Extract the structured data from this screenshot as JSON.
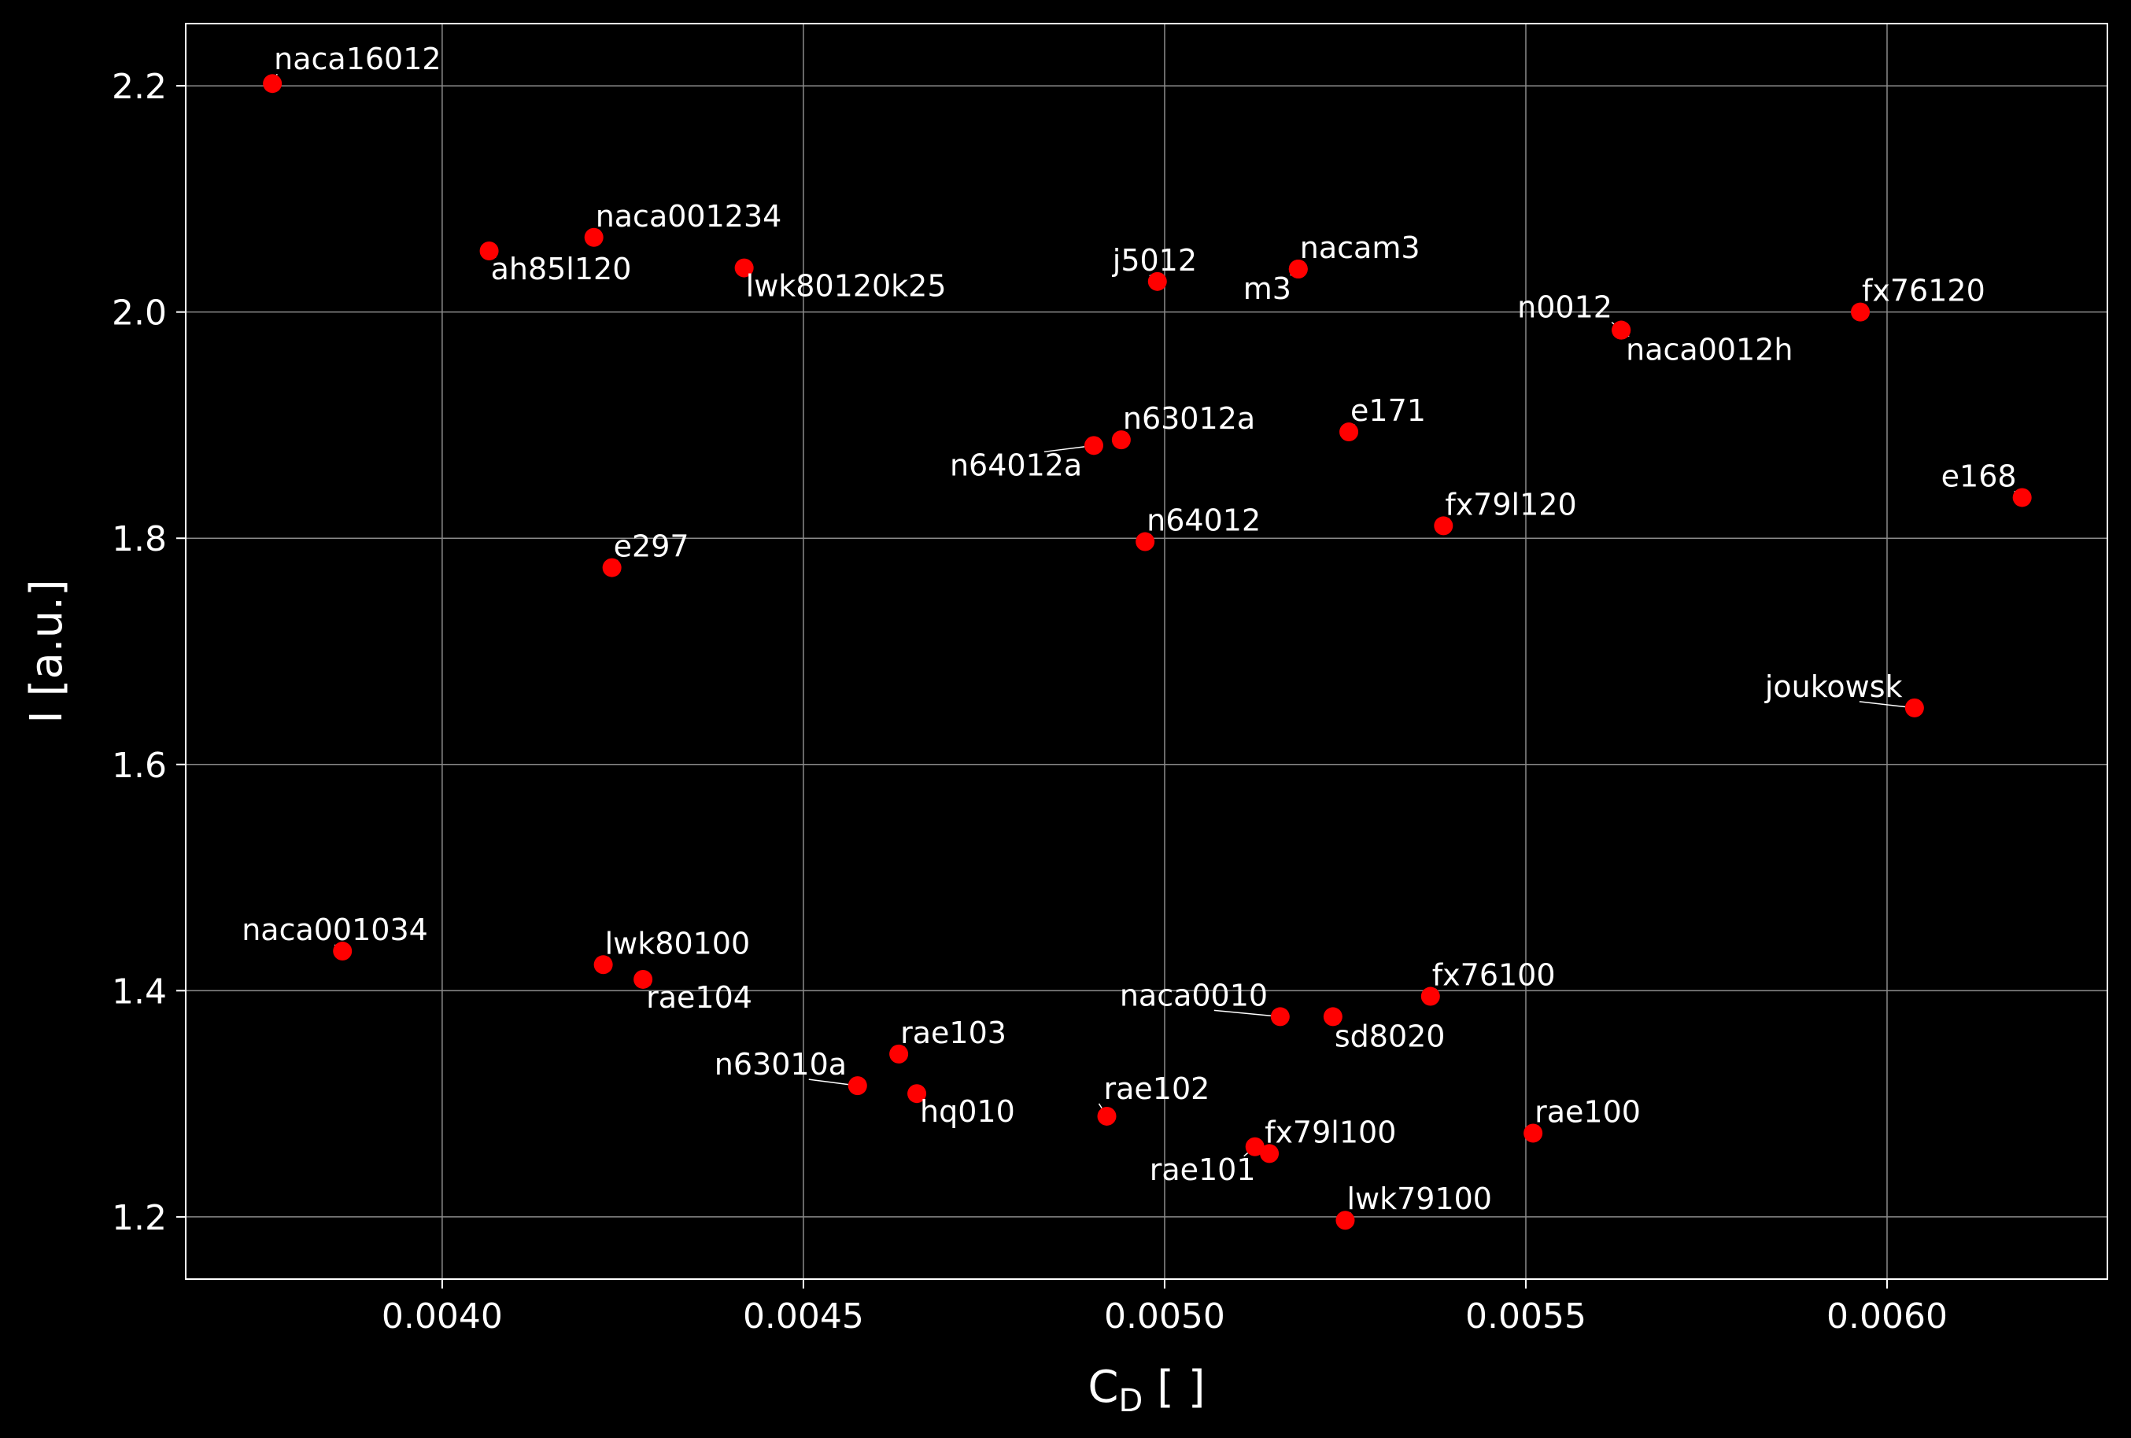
{
  "chart_data": {
    "type": "scatter",
    "title": "",
    "xlabel": "C",
    "xlabel_sub": "D",
    "xlabel_suffix": " [ ]",
    "ylabel": "I [a.u.]",
    "xlim": [
      0.003645,
      0.006305
    ],
    "ylim": [
      1.145,
      2.255
    ],
    "xticks": [
      0.004,
      0.0045,
      0.005,
      0.0055,
      0.006
    ],
    "xtick_labels": [
      "0.0040",
      "0.0045",
      "0.0050",
      "0.0055",
      "0.0060"
    ],
    "yticks": [
      1.2,
      1.4,
      1.6,
      1.8,
      2.0,
      2.2
    ],
    "ytick_labels": [
      "1.2",
      "1.4",
      "1.6",
      "1.8",
      "2.0",
      "2.2"
    ],
    "grid": true,
    "marker_color": "#ff0000",
    "points": [
      {
        "name": "naca16012",
        "x": 0.003765,
        "y": 2.202
      },
      {
        "name": "ah85l120",
        "x": 0.004065,
        "y": 2.054
      },
      {
        "name": "naca001234",
        "x": 0.00421,
        "y": 2.066
      },
      {
        "name": "lwk80120k25",
        "x": 0.004418,
        "y": 2.039
      },
      {
        "name": "j5012",
        "x": 0.00499,
        "y": 2.027
      },
      {
        "name": "nacam3",
        "x": 0.005185,
        "y": 2.038
      },
      {
        "name": "m3",
        "x": 0.005185,
        "y": 2.038
      },
      {
        "name": "n0012",
        "x": 0.005632,
        "y": 1.984
      },
      {
        "name": "naca0012h",
        "x": 0.005632,
        "y": 1.984
      },
      {
        "name": "fx76120",
        "x": 0.005963,
        "y": 2.0
      },
      {
        "name": "n63012a",
        "x": 0.00494,
        "y": 1.887
      },
      {
        "name": "n64012a",
        "x": 0.004902,
        "y": 1.882
      },
      {
        "name": "e171",
        "x": 0.005255,
        "y": 1.894
      },
      {
        "name": "e168",
        "x": 0.006187,
        "y": 1.836
      },
      {
        "name": "n64012",
        "x": 0.004973,
        "y": 1.797
      },
      {
        "name": "fx79l120",
        "x": 0.005386,
        "y": 1.811
      },
      {
        "name": "e297",
        "x": 0.004235,
        "y": 1.774
      },
      {
        "name": "joukowsk",
        "x": 0.006038,
        "y": 1.65
      },
      {
        "name": "naca001034",
        "x": 0.003862,
        "y": 1.435
      },
      {
        "name": "lwk80100",
        "x": 0.004223,
        "y": 1.423
      },
      {
        "name": "rae104",
        "x": 0.004278,
        "y": 1.41
      },
      {
        "name": "fx76100",
        "x": 0.005368,
        "y": 1.395
      },
      {
        "name": "naca0010",
        "x": 0.00516,
        "y": 1.377
      },
      {
        "name": "sd8020",
        "x": 0.005233,
        "y": 1.377
      },
      {
        "name": "rae103",
        "x": 0.004632,
        "y": 1.344
      },
      {
        "name": "n63010a",
        "x": 0.004575,
        "y": 1.316
      },
      {
        "name": "hq010",
        "x": 0.004657,
        "y": 1.309
      },
      {
        "name": "rae102",
        "x": 0.00492,
        "y": 1.289
      },
      {
        "name": "rae100",
        "x": 0.00551,
        "y": 1.274
      },
      {
        "name": "fx79l100",
        "x": 0.005145,
        "y": 1.256
      },
      {
        "name": "rae101",
        "x": 0.005125,
        "y": 1.262
      },
      {
        "name": "lwk79100",
        "x": 0.00525,
        "y": 1.197
      }
    ]
  }
}
